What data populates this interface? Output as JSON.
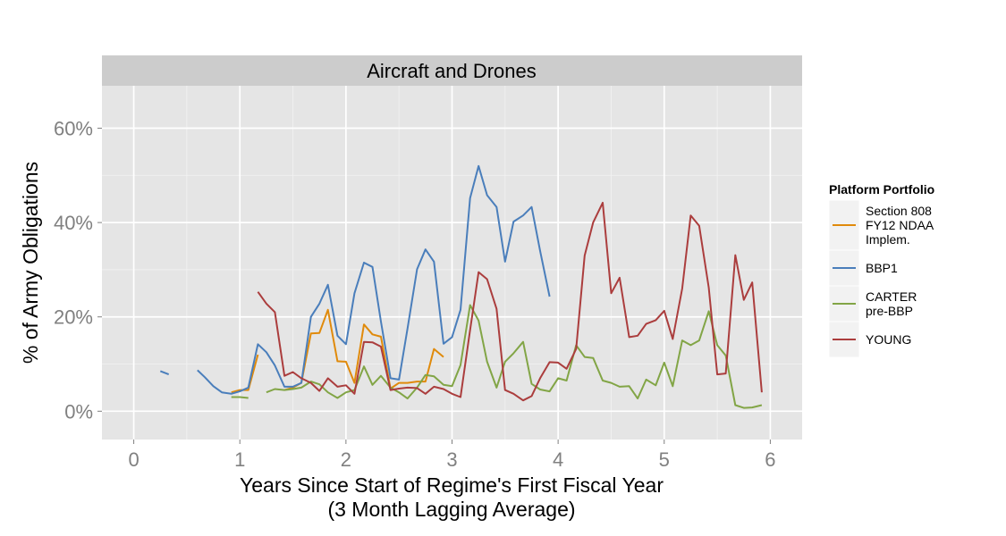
{
  "chart_data": {
    "type": "line",
    "panel_title": "Aircraft and Drones",
    "xlabel": "Years Since Start of Regime's First Fiscal Year",
    "xlabel_sub": "(3 Month Lagging Average)",
    "ylabel": "% of Army Obligations",
    "xlim": [
      -0.3,
      6.3
    ],
    "ylim": [
      -0.06,
      0.69
    ],
    "x_ticks": [
      0,
      1,
      2,
      3,
      4,
      5,
      6
    ],
    "x_tick_labels": [
      "0",
      "1",
      "2",
      "3",
      "4",
      "5",
      "6"
    ],
    "y_ticks": [
      0,
      0.2,
      0.4,
      0.6
    ],
    "y_tick_labels": [
      "0%",
      "20%",
      "40%",
      "60%"
    ],
    "grid": true,
    "legend_title": "Platform Portfolio",
    "legend_position": "right",
    "series": [
      {
        "name": "Section 808 FY12 NDAA Implem.",
        "legend_lines": [
          "Section 808",
          "FY12 NDAA",
          "Implem."
        ],
        "color": "#E08A0B",
        "segments": [
          [
            [
              0.92,
              0.04
            ],
            [
              1.0,
              0.045
            ],
            [
              1.08,
              0.045
            ],
            [
              1.17,
              0.12
            ]
          ],
          [
            [
              1.42,
              0.045
            ],
            [
              1.5,
              0.05
            ],
            [
              1.58,
              0.06
            ],
            [
              1.67,
              0.165
            ],
            [
              1.75,
              0.166
            ],
            [
              1.83,
              0.215
            ],
            [
              1.92,
              0.106
            ],
            [
              2.0,
              0.105
            ],
            [
              2.08,
              0.06
            ],
            [
              2.17,
              0.184
            ],
            [
              2.25,
              0.163
            ],
            [
              2.33,
              0.158
            ],
            [
              2.42,
              0.048
            ],
            [
              2.5,
              0.06
            ],
            [
              2.58,
              0.06
            ],
            [
              2.67,
              0.063
            ],
            [
              2.75,
              0.063
            ],
            [
              2.83,
              0.132
            ],
            [
              2.92,
              0.115
            ]
          ]
        ]
      },
      {
        "name": "BBP1",
        "legend_lines": [
          "BBP1"
        ],
        "color": "#4A7EBB",
        "segments": [
          [
            [
              0.25,
              0.085
            ],
            [
              0.33,
              0.078
            ]
          ],
          [
            [
              0.6,
              0.087
            ],
            [
              0.67,
              0.072
            ],
            [
              0.75,
              0.053
            ],
            [
              0.83,
              0.04
            ],
            [
              0.92,
              0.037
            ],
            [
              1.0,
              0.042
            ],
            [
              1.08,
              0.05
            ],
            [
              1.17,
              0.142
            ],
            [
              1.25,
              0.125
            ],
            [
              1.33,
              0.097
            ],
            [
              1.42,
              0.052
            ],
            [
              1.5,
              0.052
            ],
            [
              1.58,
              0.06
            ],
            [
              1.67,
              0.2
            ],
            [
              1.75,
              0.228
            ],
            [
              1.83,
              0.268
            ],
            [
              1.92,
              0.16
            ],
            [
              2.0,
              0.142
            ],
            [
              2.08,
              0.25
            ],
            [
              2.17,
              0.315
            ],
            [
              2.25,
              0.306
            ],
            [
              2.33,
              0.19
            ],
            [
              2.42,
              0.07
            ],
            [
              2.5,
              0.067
            ],
            [
              2.58,
              0.175
            ],
            [
              2.67,
              0.301
            ],
            [
              2.75,
              0.343
            ],
            [
              2.83,
              0.317
            ],
            [
              2.92,
              0.143
            ],
            [
              3.0,
              0.157
            ],
            [
              3.08,
              0.215
            ],
            [
              3.17,
              0.452
            ],
            [
              3.25,
              0.52
            ],
            [
              3.33,
              0.458
            ],
            [
              3.42,
              0.433
            ],
            [
              3.5,
              0.317
            ],
            [
              3.58,
              0.402
            ],
            [
              3.67,
              0.415
            ],
            [
              3.75,
              0.433
            ],
            [
              3.83,
              0.34
            ],
            [
              3.92,
              0.243
            ]
          ]
        ]
      },
      {
        "name": "CARTER pre-BBP",
        "legend_lines": [
          "CARTER",
          "pre-BBP"
        ],
        "color": "#82A546",
        "segments": [
          [
            [
              0.92,
              0.03
            ],
            [
              1.0,
              0.03
            ],
            [
              1.08,
              0.028
            ]
          ],
          [
            [
              1.25,
              0.04
            ],
            [
              1.33,
              0.047
            ],
            [
              1.42,
              0.045
            ],
            [
              1.5,
              0.047
            ],
            [
              1.58,
              0.05
            ],
            [
              1.67,
              0.063
            ],
            [
              1.75,
              0.057
            ],
            [
              1.83,
              0.04
            ],
            [
              1.92,
              0.028
            ],
            [
              2.0,
              0.04
            ],
            [
              2.08,
              0.045
            ],
            [
              2.17,
              0.095
            ],
            [
              2.25,
              0.056
            ],
            [
              2.33,
              0.075
            ],
            [
              2.42,
              0.05
            ],
            [
              2.5,
              0.04
            ],
            [
              2.58,
              0.027
            ],
            [
              2.67,
              0.05
            ],
            [
              2.75,
              0.077
            ],
            [
              2.83,
              0.074
            ],
            [
              2.92,
              0.056
            ],
            [
              3.0,
              0.053
            ],
            [
              3.08,
              0.098
            ],
            [
              3.17,
              0.225
            ],
            [
              3.25,
              0.192
            ],
            [
              3.33,
              0.105
            ],
            [
              3.42,
              0.05
            ],
            [
              3.5,
              0.105
            ],
            [
              3.58,
              0.123
            ],
            [
              3.67,
              0.147
            ],
            [
              3.75,
              0.058
            ],
            [
              3.83,
              0.046
            ],
            [
              3.92,
              0.042
            ],
            [
              4.0,
              0.07
            ],
            [
              4.08,
              0.065
            ],
            [
              4.17,
              0.14
            ],
            [
              4.25,
              0.115
            ],
            [
              4.33,
              0.113
            ],
            [
              4.42,
              0.065
            ],
            [
              4.5,
              0.06
            ],
            [
              4.58,
              0.052
            ],
            [
              4.67,
              0.053
            ],
            [
              4.75,
              0.027
            ],
            [
              4.83,
              0.067
            ],
            [
              4.92,
              0.055
            ],
            [
              5.0,
              0.103
            ],
            [
              5.08,
              0.053
            ],
            [
              5.17,
              0.15
            ],
            [
              5.25,
              0.14
            ],
            [
              5.33,
              0.15
            ],
            [
              5.42,
              0.212
            ],
            [
              5.5,
              0.14
            ],
            [
              5.58,
              0.118
            ],
            [
              5.67,
              0.013
            ],
            [
              5.75,
              0.007
            ],
            [
              5.83,
              0.008
            ],
            [
              5.92,
              0.013
            ]
          ]
        ]
      },
      {
        "name": "YOUNG",
        "legend_lines": [
          "YOUNG"
        ],
        "color": "#AB3D3D",
        "segments": [
          [
            [
              1.17,
              0.253
            ],
            [
              1.25,
              0.228
            ],
            [
              1.33,
              0.21
            ],
            [
              1.42,
              0.075
            ],
            [
              1.5,
              0.083
            ],
            [
              1.58,
              0.07
            ],
            [
              1.67,
              0.06
            ],
            [
              1.75,
              0.043
            ],
            [
              1.83,
              0.07
            ],
            [
              1.92,
              0.052
            ],
            [
              2.0,
              0.055
            ],
            [
              2.08,
              0.037
            ],
            [
              2.17,
              0.147
            ],
            [
              2.25,
              0.146
            ],
            [
              2.33,
              0.137
            ],
            [
              2.42,
              0.045
            ],
            [
              2.5,
              0.048
            ],
            [
              2.58,
              0.05
            ],
            [
              2.67,
              0.049
            ],
            [
              2.75,
              0.037
            ],
            [
              2.83,
              0.052
            ],
            [
              2.92,
              0.047
            ],
            [
              3.0,
              0.037
            ],
            [
              3.08,
              0.03
            ],
            [
              3.17,
              0.172
            ],
            [
              3.25,
              0.295
            ],
            [
              3.33,
              0.28
            ],
            [
              3.42,
              0.217
            ],
            [
              3.5,
              0.045
            ],
            [
              3.58,
              0.037
            ],
            [
              3.67,
              0.023
            ],
            [
              3.75,
              0.032
            ],
            [
              3.83,
              0.07
            ],
            [
              3.92,
              0.104
            ],
            [
              4.0,
              0.103
            ],
            [
              4.08,
              0.09
            ],
            [
              4.17,
              0.132
            ],
            [
              4.25,
              0.33
            ],
            [
              4.33,
              0.4
            ],
            [
              4.42,
              0.442
            ],
            [
              4.5,
              0.25
            ],
            [
              4.58,
              0.283
            ],
            [
              4.67,
              0.157
            ],
            [
              4.75,
              0.16
            ],
            [
              4.83,
              0.185
            ],
            [
              4.92,
              0.193
            ],
            [
              5.0,
              0.213
            ],
            [
              5.08,
              0.153
            ],
            [
              5.17,
              0.26
            ],
            [
              5.25,
              0.415
            ],
            [
              5.33,
              0.393
            ],
            [
              5.42,
              0.262
            ],
            [
              5.5,
              0.078
            ],
            [
              5.58,
              0.08
            ],
            [
              5.67,
              0.331
            ],
            [
              5.75,
              0.236
            ],
            [
              5.83,
              0.273
            ],
            [
              5.92,
              0.04
            ]
          ]
        ]
      }
    ]
  }
}
